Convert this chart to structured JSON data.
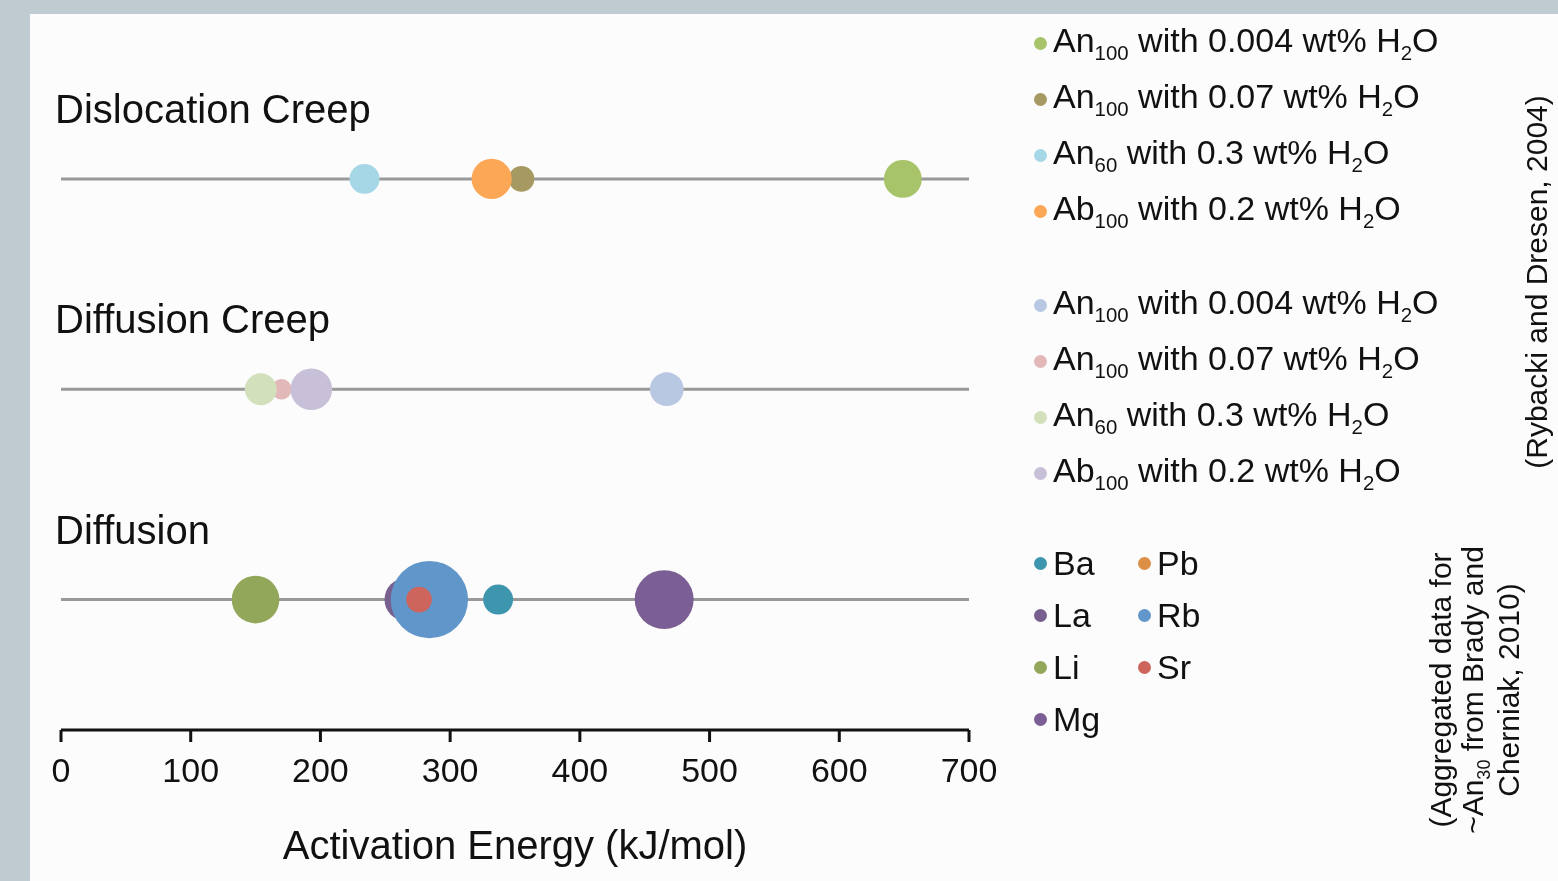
{
  "chart_data": {
    "type": "bubble",
    "orientation": "horizontal",
    "categories": [
      "Dislocation Creep",
      "Diffusion Creep",
      "Diffusion"
    ],
    "xlim": [
      0,
      700
    ],
    "xticks": [
      0,
      100,
      200,
      300,
      400,
      500,
      600,
      700
    ],
    "xlabel": "Activation Energy (kJ/mol)",
    "grid": false,
    "legend": "right",
    "series": [
      {
        "name": "An$_{100}$ with 0.004 wt% H$_{2}$O",
        "color": "#a8c46a",
        "values": [
          649,
          null,
          null
        ],
        "sizes": [
          0.24,
          null,
          null
        ]
      },
      {
        "name": "An$_{100}$ with 0.07 wt% H$_{2}$O",
        "color": "#a69a62",
        "values": [
          355,
          null,
          null
        ],
        "sizes": [
          0.11,
          null,
          null
        ]
      },
      {
        "name": "An$_{60}$ with 0.3 wt% H$_{2}$O",
        "color": "#a5d7e6",
        "values": [
          234,
          null,
          null
        ],
        "sizes": [
          0.15,
          null,
          null
        ]
      },
      {
        "name": "Ab$_{100}$ with 0.2 wt% H$_{2}$O",
        "color": "#fca756",
        "values": [
          332,
          null,
          null
        ],
        "sizes": [
          0.27,
          null,
          null
        ]
      },
      {
        "name": "An$_{100}$ with 0.004 wt% H$_{2}$O",
        "color": "#b8c7e2",
        "values": [
          null,
          467,
          null
        ],
        "sizes": [
          null,
          0.19,
          null
        ]
      },
      {
        "name": "An$_{100}$ with 0.07 wt% H$_{2}$O",
        "color": "#e2b8b8",
        "values": [
          null,
          170,
          null
        ],
        "sizes": [
          null,
          0.07,
          null
        ]
      },
      {
        "name": "An$_{60}$ with 0.3 wt% H$_{2}$O",
        "color": "#d2e0bb",
        "values": [
          null,
          154,
          null
        ],
        "sizes": [
          null,
          0.17,
          null
        ]
      },
      {
        "name": "Ab$_{100}$ with 0.2 wt% H$_{2}$O",
        "color": "#c7c0d8",
        "values": [
          null,
          193,
          null
        ],
        "sizes": [
          null,
          0.29,
          null
        ]
      },
      {
        "name": "Ba",
        "color": "#3e96ae",
        "values": [
          null,
          null,
          337
        ],
        "sizes": [
          null,
          null,
          0.15
        ]
      },
      {
        "name": "Pb",
        "color": "#dc8f45",
        "values": [
          null,
          null,
          null
        ],
        "sizes": [
          null,
          null,
          null
        ]
      },
      {
        "name": "La",
        "color": "#775f8f",
        "values": [
          null,
          null,
          266
        ],
        "sizes": [
          null,
          null,
          0.31
        ]
      },
      {
        "name": "Rb",
        "color": "#6096c9",
        "values": [
          null,
          null,
          284
        ],
        "sizes": [
          null,
          null,
          1
        ]
      },
      {
        "name": "Li",
        "color": "#93a75a",
        "values": [
          null,
          null,
          150
        ],
        "sizes": [
          null,
          null,
          0.38
        ]
      },
      {
        "name": "Sr",
        "color": "#cd655c",
        "values": [
          null,
          null,
          276
        ],
        "sizes": [
          null,
          null,
          0.11
        ]
      },
      {
        "name": "Mg",
        "color": "#7a5e94",
        "values": [
          null,
          null,
          465
        ],
        "sizes": [
          null,
          null,
          0.58
        ]
      }
    ],
    "annotations": [
      "(Rybacki and Dresen, 2004)",
      "(Aggregated data for ~An$_{30}$ from Brady and Cherniak, 2010)"
    ]
  }
}
